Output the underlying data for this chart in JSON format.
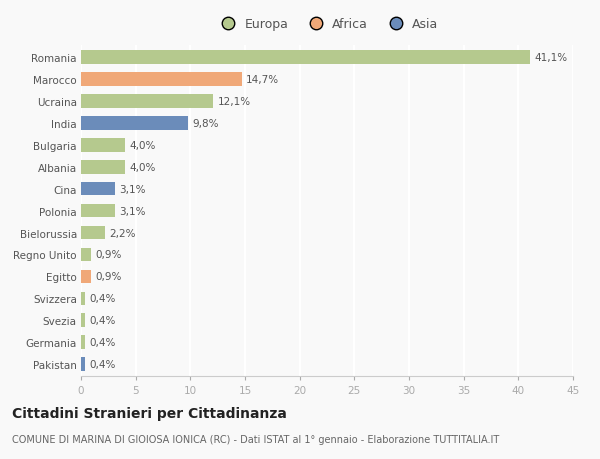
{
  "countries": [
    "Romania",
    "Marocco",
    "Ucraina",
    "India",
    "Bulgaria",
    "Albania",
    "Cina",
    "Polonia",
    "Bielorussia",
    "Regno Unito",
    "Egitto",
    "Svizzera",
    "Svezia",
    "Germania",
    "Pakistan"
  ],
  "values": [
    41.1,
    14.7,
    12.1,
    9.8,
    4.0,
    4.0,
    3.1,
    3.1,
    2.2,
    0.9,
    0.9,
    0.4,
    0.4,
    0.4,
    0.4
  ],
  "labels": [
    "41,1%",
    "14,7%",
    "12,1%",
    "9,8%",
    "4,0%",
    "4,0%",
    "3,1%",
    "3,1%",
    "2,2%",
    "0,9%",
    "0,9%",
    "0,4%",
    "0,4%",
    "0,4%",
    "0,4%"
  ],
  "colors": [
    "#b5c98e",
    "#f0a878",
    "#b5c98e",
    "#6b8cba",
    "#b5c98e",
    "#b5c98e",
    "#6b8cba",
    "#b5c98e",
    "#b5c98e",
    "#b5c98e",
    "#f0a878",
    "#b5c98e",
    "#b5c98e",
    "#b5c98e",
    "#6b8cba"
  ],
  "legend_labels": [
    "Europa",
    "Africa",
    "Asia"
  ],
  "legend_colors": [
    "#b5c98e",
    "#f0a878",
    "#6b8cba"
  ],
  "xlim": [
    0,
    45
  ],
  "xticks": [
    0,
    5,
    10,
    15,
    20,
    25,
    30,
    35,
    40,
    45
  ],
  "title": "Cittadini Stranieri per Cittadinanza",
  "subtitle": "COMUNE DI MARINA DI GIOIOSA IONICA (RC) - Dati ISTAT al 1° gennaio - Elaborazione TUTTITALIA.IT",
  "bg_color": "#f9f9f9",
  "bar_height": 0.62,
  "label_fontsize": 7.5,
  "tick_fontsize": 7.5,
  "title_fontsize": 10,
  "subtitle_fontsize": 7
}
